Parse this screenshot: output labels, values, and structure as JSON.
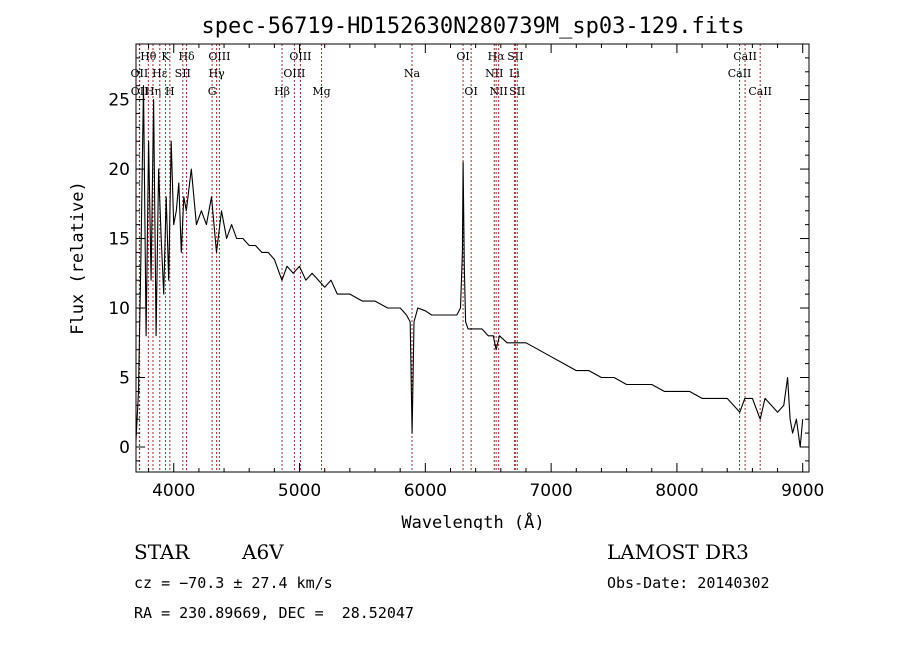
{
  "chart_data": {
    "type": "line",
    "title": "spec-56719-HD152630N280739M_sp03-129.fits",
    "xlabel": "Wavelength (Å)",
    "ylabel": "Flux (relative)",
    "xlim": [
      3700,
      9050
    ],
    "ylim": [
      -1.8,
      29
    ],
    "xticks": [
      4000,
      5000,
      6000,
      7000,
      8000,
      9000
    ],
    "yticks": [
      0,
      5,
      10,
      15,
      20,
      25
    ],
    "series": [
      {
        "name": "flux",
        "x": [
          3700,
          3720,
          3740,
          3760,
          3780,
          3800,
          3820,
          3840,
          3860,
          3880,
          3900,
          3920,
          3940,
          3960,
          3980,
          4000,
          4020,
          4040,
          4060,
          4080,
          4100,
          4140,
          4180,
          4220,
          4260,
          4300,
          4340,
          4380,
          4420,
          4460,
          4500,
          4550,
          4600,
          4650,
          4700,
          4750,
          4800,
          4860,
          4900,
          4950,
          5000,
          5050,
          5100,
          5150,
          5200,
          5250,
          5300,
          5400,
          5500,
          5600,
          5700,
          5800,
          5850,
          5880,
          5895,
          5910,
          5940,
          6000,
          6050,
          6100,
          6150,
          6200,
          6250,
          6280,
          6295,
          6300,
          6310,
          6320,
          6340,
          6370,
          6400,
          6450,
          6500,
          6540,
          6563,
          6590,
          6650,
          6700,
          6800,
          6900,
          7000,
          7100,
          7200,
          7300,
          7400,
          7500,
          7600,
          7700,
          7800,
          7900,
          8000,
          8100,
          8200,
          8300,
          8400,
          8450,
          8500,
          8540,
          8600,
          8662,
          8700,
          8750,
          8800,
          8850,
          8880,
          8900,
          8920,
          8950,
          8980,
          9000
        ],
        "y": [
          0.5,
          4,
          14,
          26,
          8,
          22,
          12,
          25,
          8,
          20,
          15,
          11,
          18,
          12,
          22,
          16,
          17,
          19,
          14,
          18,
          17,
          20,
          16,
          17,
          16,
          18,
          14,
          17,
          15,
          16,
          15,
          15,
          14.5,
          14.5,
          14,
          14,
          13.5,
          12,
          13,
          12.5,
          13,
          12,
          12.5,
          12,
          11.5,
          12,
          11,
          11,
          10.5,
          10.5,
          10,
          10,
          9.5,
          9,
          1,
          9,
          10,
          9.8,
          9.5,
          9.5,
          9.5,
          9.5,
          9.5,
          10,
          14,
          20.5,
          13,
          9,
          8.5,
          8.5,
          8.5,
          8.5,
          8,
          8,
          7,
          8,
          7.5,
          7.5,
          7.5,
          7,
          6.5,
          6,
          5.5,
          5.5,
          5,
          5,
          4.5,
          4.5,
          4.5,
          4,
          4,
          4,
          3.5,
          3.5,
          3.5,
          3,
          2.5,
          3.5,
          3.5,
          2,
          3.5,
          3,
          2.5,
          3,
          5,
          2,
          1,
          2,
          0,
          2
        ]
      }
    ],
    "lines": [
      {
        "name": "Hθ",
        "x": 3798,
        "row": 1
      },
      {
        "name": "OII",
        "x": 3727,
        "row": 2
      },
      {
        "name": "OII",
        "x": 3729,
        "row": 3
      },
      {
        "name": "Hη",
        "x": 3835,
        "row": 3
      },
      {
        "name": "Hε",
        "x": 3889,
        "row": 2
      },
      {
        "name": "K",
        "x": 3934,
        "row": 1
      },
      {
        "name": "H",
        "x": 3969,
        "row": 3
      },
      {
        "name": "SII",
        "x": 4072,
        "row": 2
      },
      {
        "name": "Hδ",
        "x": 4102,
        "row": 1
      },
      {
        "name": "OIII",
        "x": 4363,
        "row": 1
      },
      {
        "name": "Hγ",
        "x": 4341,
        "row": 2
      },
      {
        "name": "G",
        "x": 4305,
        "row": 3
      },
      {
        "name": "Hβ",
        "x": 4861,
        "row": 3
      },
      {
        "name": "OIII",
        "x": 5007,
        "row": 1
      },
      {
        "name": "OIII",
        "x": 4959,
        "row": 2
      },
      {
        "name": "Mg",
        "x": 5175,
        "row": 3
      },
      {
        "name": "Na",
        "x": 5894,
        "row": 2
      },
      {
        "name": "OI",
        "x": 6300,
        "row": 1
      },
      {
        "name": "OI",
        "x": 6364,
        "row": 3
      },
      {
        "name": "Hα",
        "x": 6563,
        "row": 1
      },
      {
        "name": "NII",
        "x": 6548,
        "row": 2
      },
      {
        "name": "NII",
        "x": 6583,
        "row": 3
      },
      {
        "name": "SII",
        "x": 6716,
        "row": 1
      },
      {
        "name": "Li",
        "x": 6708,
        "row": 2
      },
      {
        "name": "SII",
        "x": 6731,
        "row": 3
      },
      {
        "name": "CaII",
        "x": 8542,
        "row": 1
      },
      {
        "name": "CaII",
        "x": 8498,
        "row": 2
      },
      {
        "name": "CaII",
        "x": 8662,
        "row": 3
      }
    ]
  },
  "info": {
    "object_class": "STAR",
    "subclass": "A6V",
    "survey": "LAMOST DR3",
    "cz": "cz = −70.3 ± 27.4 km/s",
    "obs_date": "Obs-Date: 20140302",
    "coords": "RA = 230.89669, DEC =  28.52047"
  }
}
